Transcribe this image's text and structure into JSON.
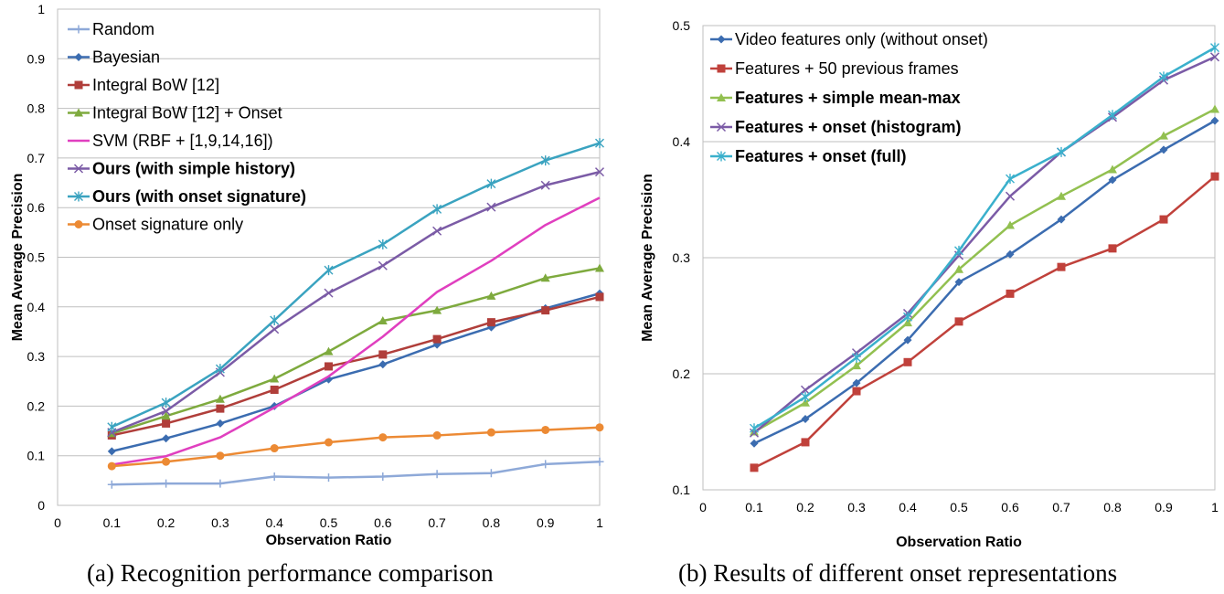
{
  "captions": {
    "a": "(a) Recognition performance comparison",
    "b": "(b) Results of different onset representations"
  },
  "chart_data": [
    {
      "type": "line",
      "xlabel": "Observation  Ratio",
      "ylabel": "Mean Average Precision",
      "xlim": [
        0,
        1
      ],
      "ylim": [
        0,
        1
      ],
      "x_ticks": [
        "0",
        "0.1",
        "0.2",
        "0.3",
        "0.4",
        "0.5",
        "0.6",
        "0.7",
        "0.8",
        "0.9",
        "1"
      ],
      "y_ticks": [
        "0",
        "0.1",
        "0.2",
        "0.3",
        "0.4",
        "0.5",
        "0.6",
        "0.7",
        "0.8",
        "0.9",
        "1"
      ],
      "grid": "horizontal",
      "legend_position": "top-left",
      "x": [
        0.1,
        0.2,
        0.3,
        0.4,
        0.5,
        0.6,
        0.7,
        0.8,
        0.9,
        1.0
      ],
      "series": [
        {
          "name": "Random",
          "color": "#8ea9d8",
          "marker": "plus",
          "bold": false,
          "values": [
            0.042,
            0.044,
            0.044,
            0.058,
            0.056,
            0.058,
            0.063,
            0.065,
            0.083,
            0.088
          ]
        },
        {
          "name": "Bayesian",
          "color": "#3b6cb0",
          "marker": "diamond",
          "bold": false,
          "values": [
            0.109,
            0.135,
            0.165,
            0.2,
            0.254,
            0.284,
            0.324,
            0.359,
            0.397,
            0.427
          ]
        },
        {
          "name": "Integral BoW [12]",
          "color": "#b03e3a",
          "marker": "square",
          "bold": false,
          "values": [
            0.141,
            0.165,
            0.195,
            0.233,
            0.28,
            0.304,
            0.335,
            0.369,
            0.393,
            0.42
          ]
        },
        {
          "name": "Integral BoW [12] + Onset",
          "color": "#7eaa3e",
          "marker": "triangle",
          "bold": false,
          "values": [
            0.145,
            0.18,
            0.214,
            0.255,
            0.31,
            0.372,
            0.393,
            0.422,
            0.458,
            0.478
          ]
        },
        {
          "name": "SVM (RBF + [1,9,14,16])",
          "color": "#e03fbf",
          "marker": "none",
          "bold": false,
          "values": [
            0.082,
            0.099,
            0.137,
            0.197,
            0.26,
            0.34,
            0.43,
            0.493,
            0.565,
            0.62
          ]
        },
        {
          "name": "Ours (with simple history)",
          "color": "#7b5ba6",
          "marker": "x",
          "bold": true,
          "values": [
            0.147,
            0.19,
            0.268,
            0.355,
            0.428,
            0.483,
            0.553,
            0.601,
            0.645,
            0.672
          ]
        },
        {
          "name": "Ours (with onset signature)",
          "color": "#3aa3c0",
          "marker": "star",
          "bold": true,
          "values": [
            0.158,
            0.207,
            0.275,
            0.373,
            0.474,
            0.526,
            0.597,
            0.648,
            0.695,
            0.73
          ]
        },
        {
          "name": "Onset signature only",
          "color": "#ec8a34",
          "marker": "circle",
          "bold": false,
          "values": [
            0.079,
            0.088,
            0.1,
            0.115,
            0.127,
            0.137,
            0.141,
            0.147,
            0.152,
            0.157
          ]
        }
      ]
    },
    {
      "type": "line",
      "xlabel": "Observation Ratio",
      "ylabel": "Mean Average Precision",
      "xlim": [
        0,
        1
      ],
      "ylim": [
        0.1,
        0.5
      ],
      "x_ticks": [
        "0",
        "0.1",
        "0.2",
        "0.3",
        "0.4",
        "0.5",
        "0.6",
        "0.7",
        "0.8",
        "0.9",
        "1"
      ],
      "y_ticks": [
        "0.1",
        "0.2",
        "0.3",
        "0.4",
        "0.5"
      ],
      "grid": "horizontal",
      "legend_position": "top-left",
      "x": [
        0.1,
        0.2,
        0.3,
        0.4,
        0.5,
        0.6,
        0.7,
        0.8,
        0.9,
        1.0
      ],
      "series": [
        {
          "name": "Video features only (without onset)",
          "color": "#3b6cb0",
          "marker": "diamond",
          "bold": false,
          "values": [
            0.14,
            0.161,
            0.192,
            0.229,
            0.279,
            0.303,
            0.333,
            0.367,
            0.393,
            0.418
          ]
        },
        {
          "name": "Features + 50 previous frames",
          "color": "#c0413b",
          "marker": "square",
          "bold": false,
          "values": [
            0.119,
            0.141,
            0.185,
            0.21,
            0.245,
            0.269,
            0.292,
            0.308,
            0.333,
            0.37
          ]
        },
        {
          "name": "Features + simple mean-max",
          "color": "#92c050",
          "marker": "triangle",
          "bold": true,
          "values": [
            0.15,
            0.175,
            0.207,
            0.244,
            0.29,
            0.328,
            0.353,
            0.376,
            0.405,
            0.428
          ]
        },
        {
          "name": "Features + onset (histogram)",
          "color": "#7b5ba6",
          "marker": "x",
          "bold": true,
          "values": [
            0.149,
            0.186,
            0.218,
            0.252,
            0.302,
            0.353,
            0.391,
            0.421,
            0.453,
            0.473
          ]
        },
        {
          "name": "Features + onset (full)",
          "color": "#3ab0cc",
          "marker": "star",
          "bold": true,
          "values": [
            0.153,
            0.18,
            0.214,
            0.249,
            0.306,
            0.368,
            0.391,
            0.423,
            0.456,
            0.481
          ]
        }
      ]
    }
  ]
}
